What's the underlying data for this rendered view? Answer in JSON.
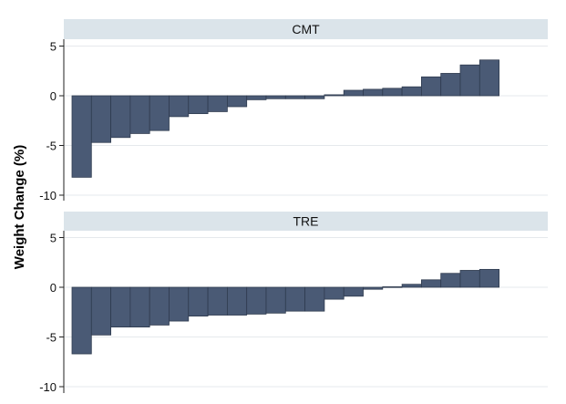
{
  "chart_data": {
    "type": "bar",
    "ylabel": "Weight Change (%)",
    "ylim": [
      -10.5,
      5.5
    ],
    "yticks": [
      5,
      0,
      -5,
      -10
    ],
    "grid": true,
    "bar_color": "#4a5a75",
    "strip_color": "#dbe4ea",
    "panels": [
      {
        "name": "CMT",
        "values": [
          -8.2,
          -4.7,
          -4.2,
          -3.8,
          -3.5,
          -2.1,
          -1.8,
          -1.6,
          -1.1,
          -0.4,
          -0.3,
          -0.3,
          -0.3,
          0.1,
          0.55,
          0.65,
          0.75,
          0.9,
          1.9,
          2.25,
          3.1,
          3.6
        ]
      },
      {
        "name": "TRE",
        "values": [
          -6.7,
          -4.8,
          -4.0,
          -4.0,
          -3.8,
          -3.4,
          -2.9,
          -2.8,
          -2.8,
          -2.7,
          -2.6,
          -2.4,
          -2.4,
          -1.2,
          -0.9,
          -0.2,
          0.05,
          0.3,
          0.75,
          1.4,
          1.7,
          1.8
        ]
      }
    ]
  }
}
